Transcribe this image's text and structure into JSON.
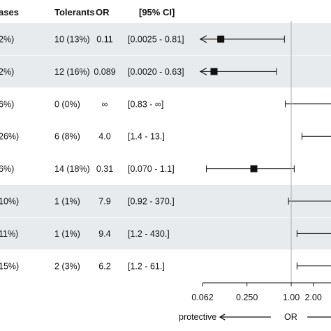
{
  "chart_data": {
    "type": "forest",
    "columns": [
      "ases",
      "Tolerants",
      "OR",
      "[95% CI]"
    ],
    "rows": [
      {
        "cases": "2%)",
        "tolerants": "10 (13%)",
        "or_label": "0.11",
        "ci_label": "[0.0025 - 0.81]",
        "or": 0.11,
        "lo": 0.0025,
        "hi": 0.81,
        "shaded": true,
        "point_visible": true,
        "left_arrow": true,
        "right_arrow": false
      },
      {
        "cases": "2%)",
        "tolerants": "12 (16%)",
        "or_label": "0.089",
        "ci_label": "[0.0020 - 0.63]",
        "or": 0.089,
        "lo": 0.002,
        "hi": 0.63,
        "shaded": true,
        "point_visible": true,
        "left_arrow": true,
        "right_arrow": false
      },
      {
        "cases": "6%)",
        "tolerants": "0 (0%)",
        "or_label": "∞",
        "ci_label": "[0.83 - ∞]",
        "or": null,
        "lo": 0.83,
        "hi": null,
        "shaded": false,
        "point_visible": false,
        "left_arrow": false,
        "right_arrow": true
      },
      {
        "cases": "26%)",
        "tolerants": "6 (8%)",
        "or_label": "4.0",
        "ci_label": "[1.4 - 13.]",
        "or": 4.0,
        "lo": 1.4,
        "hi": 13,
        "shaded": false,
        "point_visible": false,
        "left_arrow": false,
        "right_arrow": true
      },
      {
        "cases": "6%)",
        "tolerants": "14 (18%)",
        "or_label": "0.31",
        "ci_label": "[0.070 - 1.1]",
        "or": 0.31,
        "lo": 0.07,
        "hi": 1.1,
        "shaded": false,
        "point_visible": true,
        "left_arrow": false,
        "right_arrow": false
      },
      {
        "cases": "10%)",
        "tolerants": "1 (1%)",
        "or_label": "7.9",
        "ci_label": "[0.92 - 370.]",
        "or": 7.9,
        "lo": 0.92,
        "hi": 370,
        "shaded": true,
        "point_visible": false,
        "left_arrow": false,
        "right_arrow": true
      },
      {
        "cases": "11%)",
        "tolerants": "1 (1%)",
        "or_label": "9.4",
        "ci_label": "[1.2 - 430.]",
        "or": 9.4,
        "lo": 1.2,
        "hi": 430,
        "shaded": true,
        "point_visible": false,
        "left_arrow": false,
        "right_arrow": true
      },
      {
        "cases": "15%)",
        "tolerants": "2 (3%)",
        "or_label": "6.2",
        "ci_label": "[1.2 - 61.]",
        "or": 6.2,
        "lo": 1.2,
        "hi": 61,
        "shaded": false,
        "point_visible": false,
        "left_arrow": false,
        "right_arrow": true
      }
    ],
    "x_axis": {
      "scale": "log",
      "ticks": [
        0.062,
        0.25,
        1.0,
        2.0
      ],
      "tick_labels": [
        "0.062",
        "0.250",
        "1.00",
        "2.00"
      ],
      "reference_line": 1.0,
      "label": "OR",
      "left_label": "protective"
    },
    "colors": {
      "shading": "#e8ebee",
      "reference_line": "#aaaaaa",
      "marks": "#111111"
    }
  }
}
